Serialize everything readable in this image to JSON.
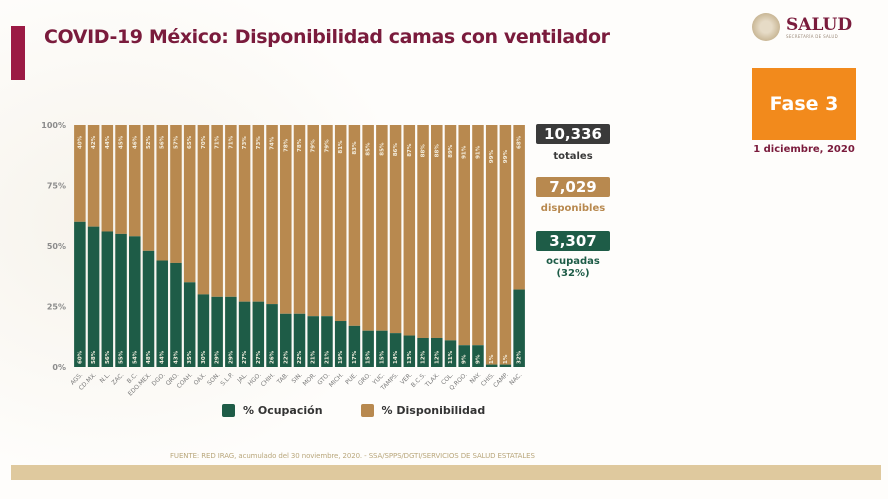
{
  "header": {
    "title": "COVID-19 México: Disponibilidad camas con ventilador",
    "logo_main": "SALUD",
    "logo_sub": "SECRETARÍA DE SALUD",
    "phase": "Fase 3",
    "date": "1 diciembre, 2020"
  },
  "stats": {
    "totales": {
      "value": "10,336",
      "label": "totales"
    },
    "disponibles": {
      "value": "7,029",
      "label": "disponibles"
    },
    "ocupadas": {
      "value": "3,307",
      "label": "ocupadas",
      "sub": "(32%)"
    }
  },
  "footer": {
    "source": "FUENTE: RED IRAG, acumulado del 30 noviembre, 2020. -  SSA/SPPS/DGTI/SERVICIOS DE SALUD ESTATALES"
  },
  "colors": {
    "ocupacion": "#1e5c47",
    "disponibilidad": "#b8894f",
    "title": "#7a1b3c",
    "accent": "#9b1a44",
    "phase": "#f28a1c",
    "totales_box": "#3a3a3a"
  },
  "chart_data": {
    "type": "bar",
    "stacked": true,
    "title": "COVID-19 México: Disponibilidad camas con ventilador",
    "xlabel": "",
    "ylabel": "",
    "ylim": [
      0,
      100
    ],
    "yticks": [
      "0%",
      "25%",
      "50%",
      "75%",
      "100%"
    ],
    "grid": false,
    "legend_position": "bottom",
    "categories": [
      "AGS.",
      "CD.MX.",
      "N.L.",
      "ZAC.",
      "B.C.",
      "EDO.MEX.",
      "DGO.",
      "QRO.",
      "COAH.",
      "OAX.",
      "SON.",
      "S.L.P.",
      "JAL.",
      "HGO.",
      "CHIH.",
      "TAB.",
      "SIN.",
      "MOR.",
      "GTO.",
      "MICH.",
      "PUE.",
      "GRO.",
      "YUC.",
      "TAMPS.",
      "VER.",
      "B.C.S.",
      "TLAX.",
      "COL.",
      "Q.ROO.",
      "NAY.",
      "CHIS.",
      "CAMP.",
      "NAC."
    ],
    "series": [
      {
        "name": "% Ocupación",
        "values": [
          60,
          58,
          56,
          55,
          54,
          48,
          44,
          43,
          35,
          30,
          29,
          29,
          27,
          27,
          26,
          22,
          22,
          21,
          21,
          19,
          17,
          15,
          15,
          14,
          13,
          12,
          12,
          11,
          9,
          9,
          1,
          1,
          32
        ]
      },
      {
        "name": "% Disponibilidad",
        "values": [
          40,
          42,
          44,
          45,
          46,
          52,
          56,
          57,
          65,
          70,
          71,
          71,
          73,
          73,
          74,
          78,
          78,
          79,
          79,
          81,
          83,
          85,
          85,
          86,
          87,
          88,
          88,
          89,
          91,
          91,
          99,
          99,
          68
        ]
      }
    ]
  }
}
